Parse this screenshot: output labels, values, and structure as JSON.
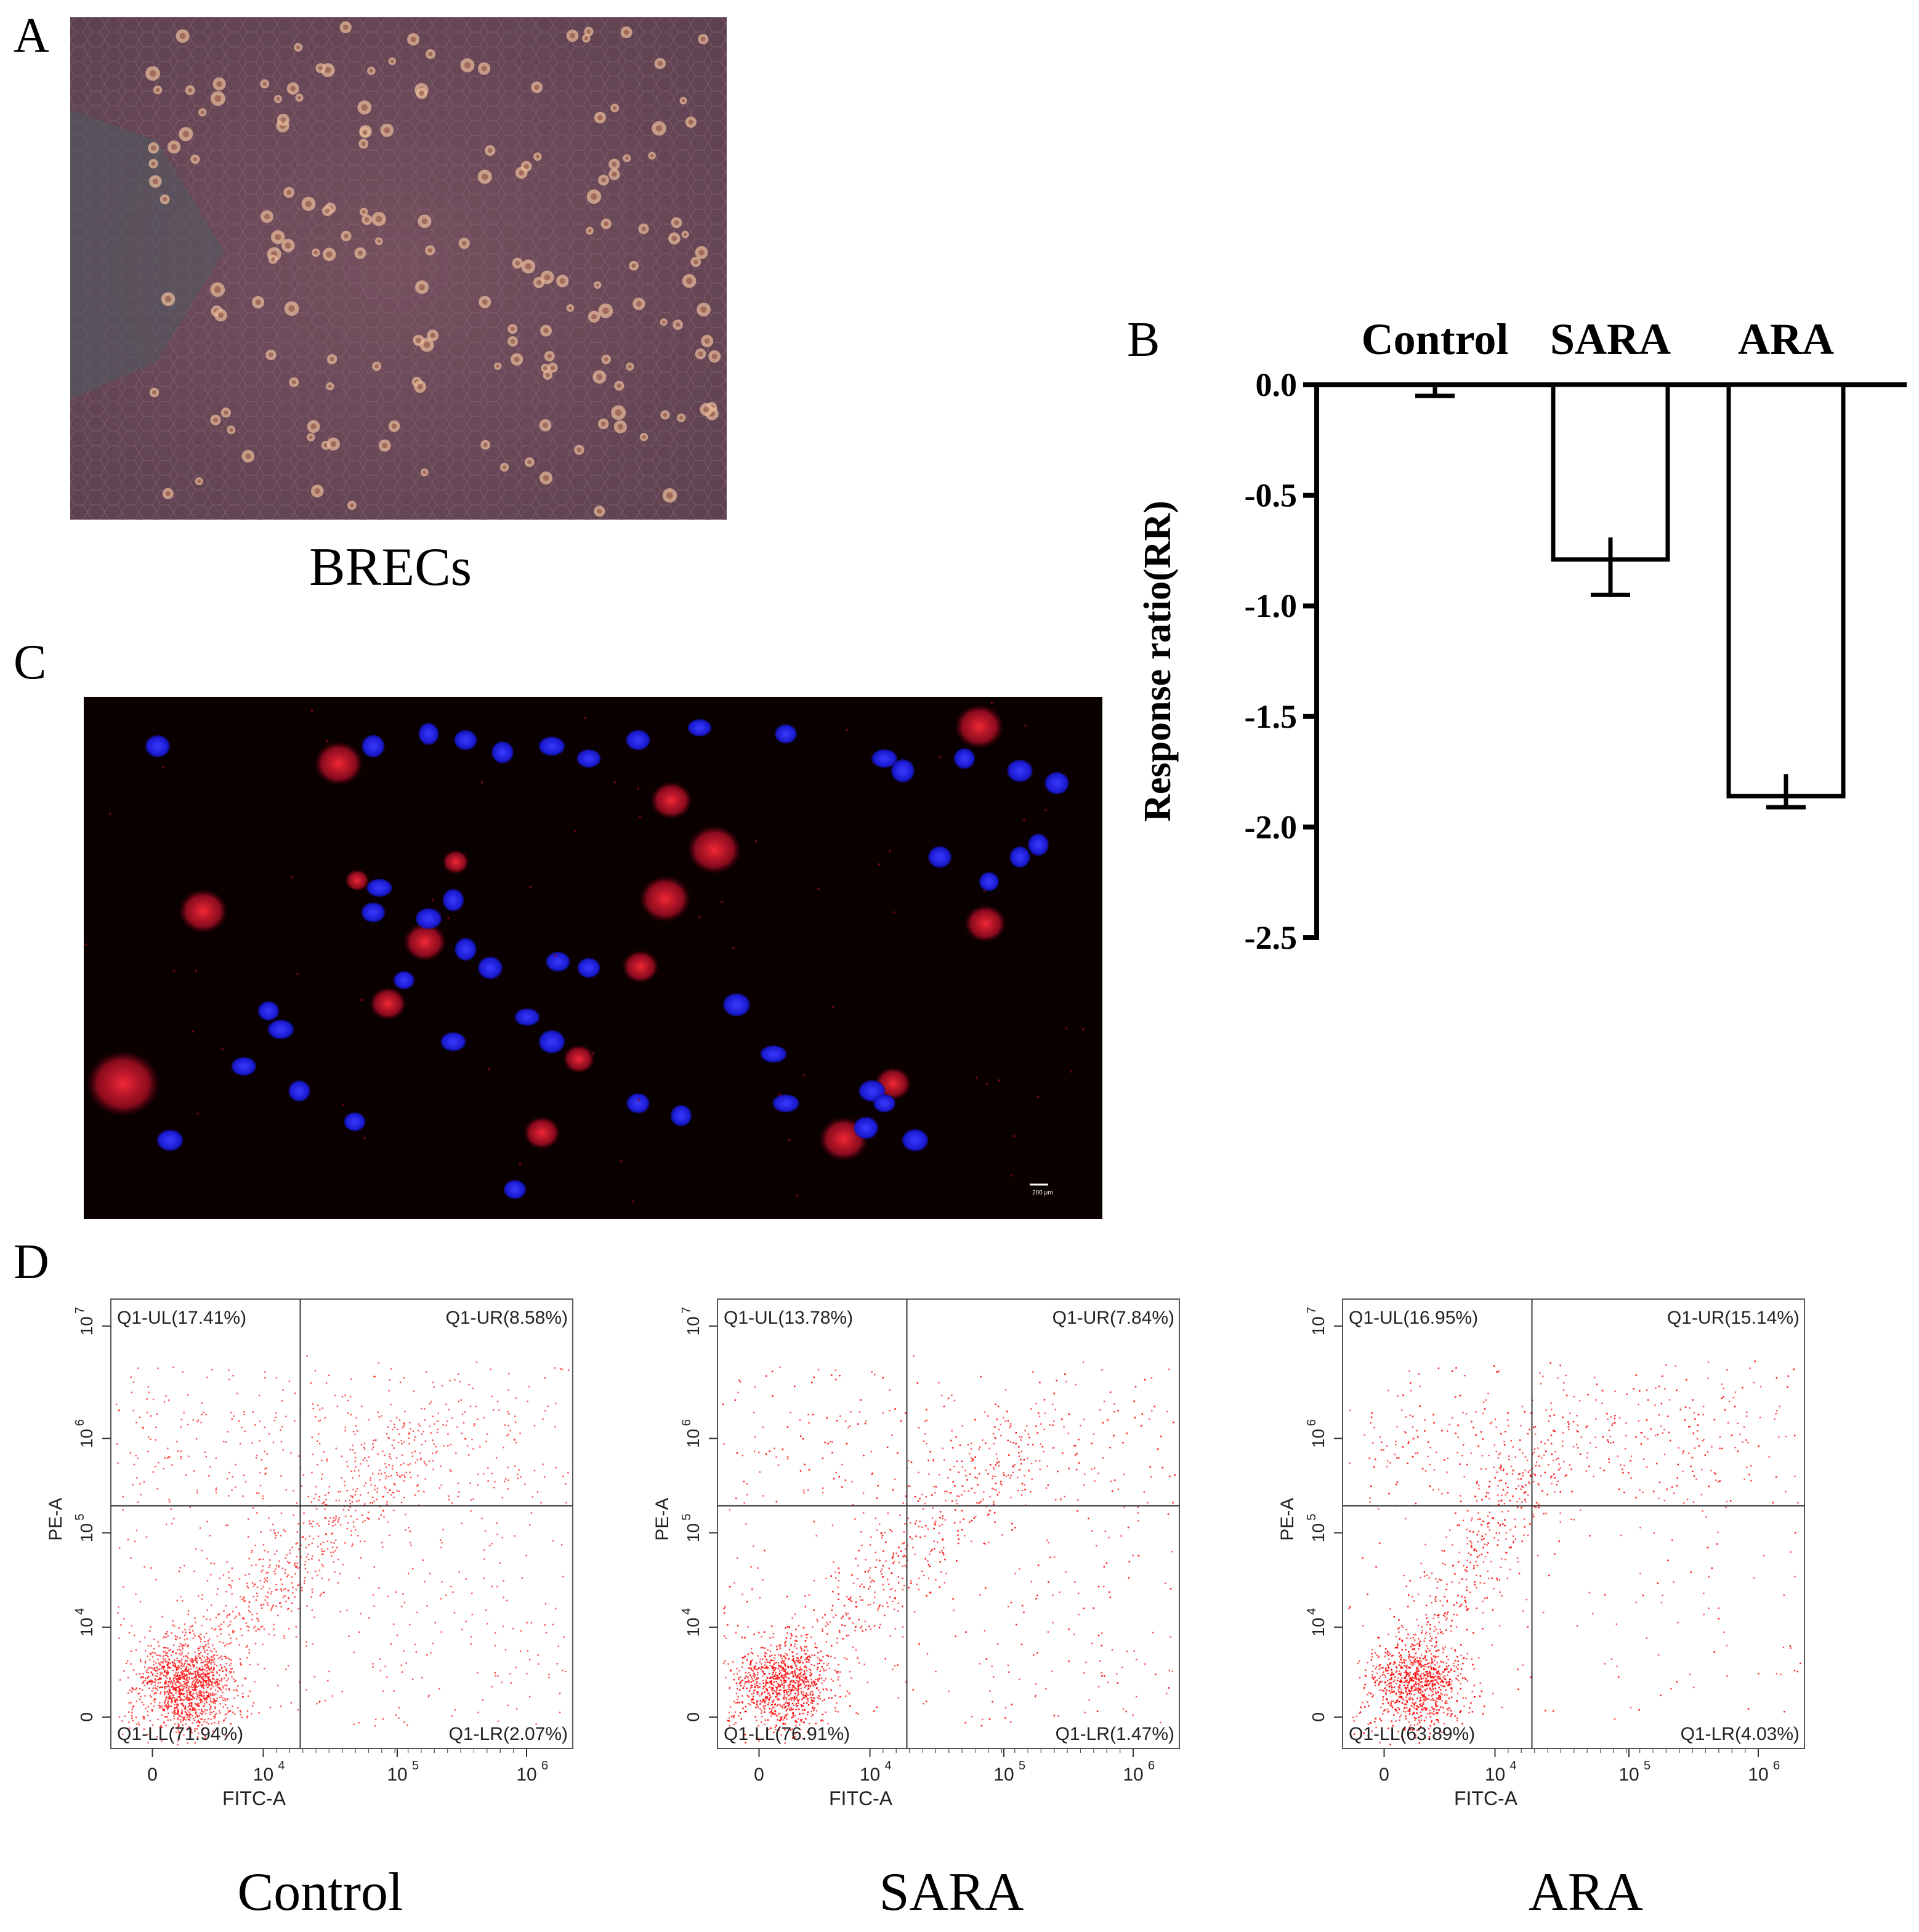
{
  "panels": {
    "a": {
      "letter": "A",
      "caption": "BRECs"
    },
    "b": {
      "letter": "B"
    },
    "c": {
      "letter": "C",
      "scale_bar_label": "200 μm"
    },
    "d": {
      "letter": "D"
    }
  },
  "chart_data": [
    {
      "type": "bar",
      "panel": "B",
      "categories": [
        "Control",
        "SARA",
        "ARA"
      ],
      "values": [
        0.0,
        -0.79,
        -1.86
      ],
      "errors": [
        0.05,
        0.16,
        0.05
      ],
      "ylabel": "Response ratio(RR)",
      "ylim": [
        -2.5,
        0.0
      ],
      "yticks": [
        "0.0",
        "-0.5",
        "-1.0",
        "-1.5",
        "-2.0",
        "-2.5"
      ],
      "category_position": "top",
      "bar_fill": "#ffffff",
      "bar_stroke": "#000000"
    },
    {
      "type": "scatter",
      "panel": "D",
      "plots": [
        {
          "caption": "Control",
          "quadrants": {
            "ul": "Q1-UL(17.41%)",
            "ur": "Q1-UR(8.58%)",
            "ll": "Q1-LL(71.94%)",
            "lr": "Q1-LR(2.07%)"
          }
        },
        {
          "caption": "SARA",
          "quadrants": {
            "ul": "Q1-UL(13.78%)",
            "ur": "Q1-UR(7.84%)",
            "ll": "Q1-LL(76.91%)",
            "lr": "Q1-LR(1.47%)"
          }
        },
        {
          "caption": "ARA",
          "quadrants": {
            "ul": "Q1-UL(16.95%)",
            "ur": "Q1-UR(15.14%)",
            "ll": "Q1-LL(63.89%)",
            "lr": "Q1-LR(4.03%)"
          }
        }
      ],
      "xlabel": "FITC-A",
      "ylabel": "PE-A",
      "xticks": [
        "0",
        "10",
        "10",
        "10"
      ],
      "xtick_exponents": [
        "",
        "4",
        "5",
        "6"
      ],
      "yticks": [
        "0",
        "10",
        "10",
        "10",
        "10"
      ],
      "ytick_exponents": [
        "",
        "4",
        "5",
        "6",
        "7"
      ],
      "point_color": "#ff0000"
    }
  ]
}
